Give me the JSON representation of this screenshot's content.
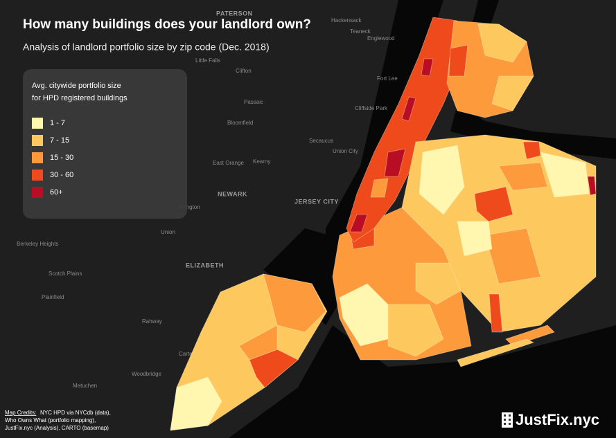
{
  "header": {
    "title": "How many buildings does your landlord own?",
    "subtitle": "Analysis of landlord portfolio size by zip code (Dec. 2018)"
  },
  "legend": {
    "title_lines": [
      "Avg. citywide portfolio size",
      "for HPD registered buildings"
    ],
    "items": [
      {
        "label": "1 - 7",
        "color": "#fff7b0"
      },
      {
        "label": "7 - 15",
        "color": "#fdc95e"
      },
      {
        "label": "15 - 30",
        "color": "#fc9a3c"
      },
      {
        "label": "30 - 60",
        "color": "#ee4a1c"
      },
      {
        "label": "60+",
        "color": "#b80d24"
      }
    ]
  },
  "credits": {
    "label": "Map Credits:",
    "lines": [
      " NYC HPD via NYCdb (data),",
      "Who Owns What (portfolio mapping),",
      "JustFix.nyc (Analysis), CARTO (basemap)"
    ]
  },
  "brand": "JustFix.nyc",
  "basemap_labels": [
    "PATERSON",
    "Clifton",
    "Passaic",
    "Little Falls",
    "Bloomfield",
    "East Orange",
    "Kearny",
    "NEWARK",
    "JERSEY CITY",
    "Secaucus",
    "Union City",
    "Fort Lee",
    "Cliffside Park",
    "Hackensack",
    "Teaneck",
    "Englewood",
    "Union",
    "ELIZABETH",
    "Berkeley Heights",
    "Scotch Plains",
    "Plainfield",
    "Rahway",
    "Carteret",
    "Woodbridge",
    "Metuchen",
    "Irvington"
  ]
}
